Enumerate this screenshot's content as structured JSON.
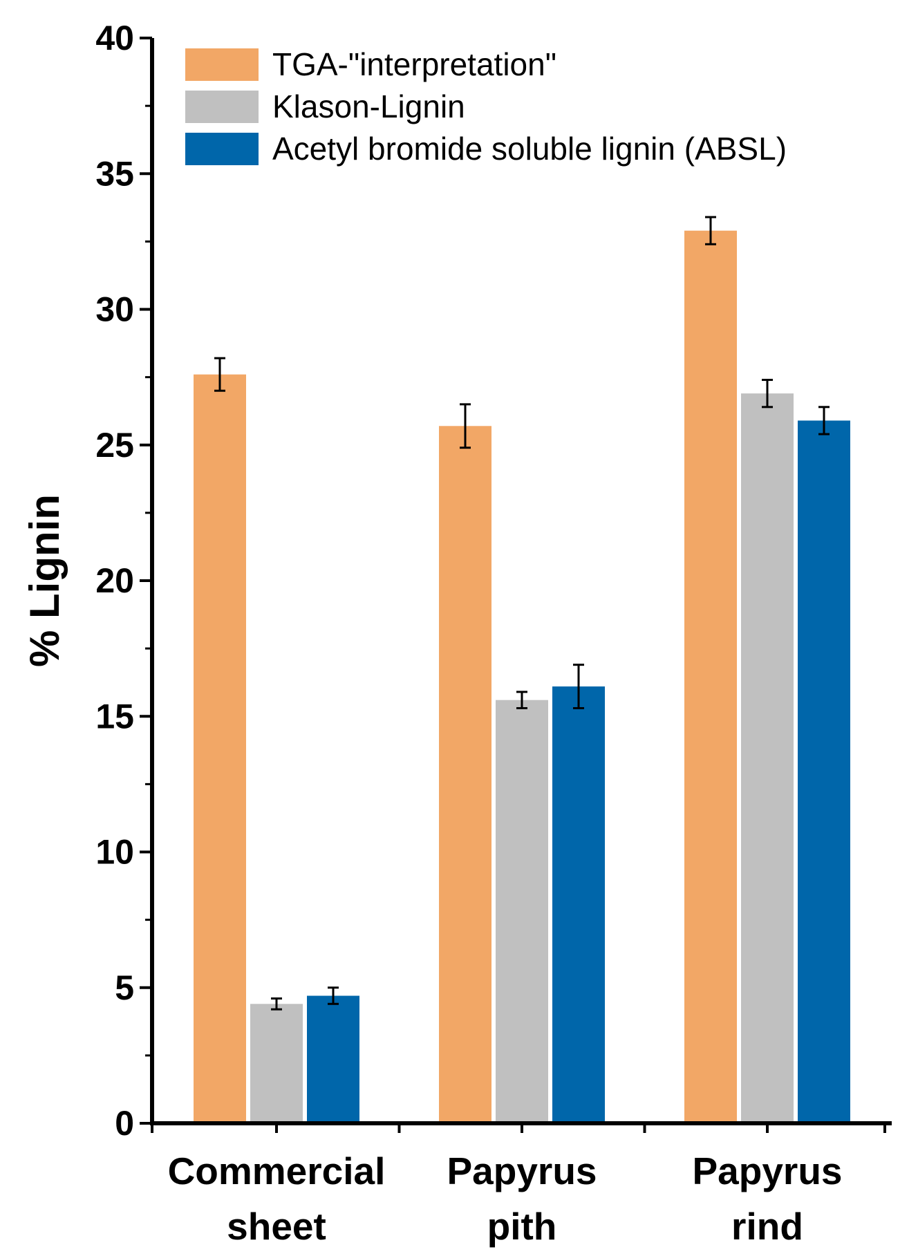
{
  "chart_data": {
    "type": "bar",
    "title": "",
    "xlabel": "",
    "ylabel": "% Lignin",
    "ylim": [
      0,
      40
    ],
    "yticks": [
      "0",
      "5",
      "10",
      "15",
      "20",
      "25",
      "30",
      "35",
      "40"
    ],
    "y_minor_step": 2.5,
    "grid": false,
    "legend_position": "top-left",
    "categories": [
      {
        "line1": "Commercial",
        "line2": "sheet"
      },
      {
        "line1": "Papyrus",
        "line2": "pith"
      },
      {
        "line1": "Papyrus",
        "line2": "rind"
      }
    ],
    "series": [
      {
        "name": "TGA-\"interpretation\"",
        "color": "#F2A766",
        "values": [
          27.6,
          25.7,
          32.9
        ],
        "errors": [
          0.6,
          0.8,
          0.5
        ]
      },
      {
        "name": "Klason-Lignin",
        "color": "#C0C0C0",
        "values": [
          4.4,
          15.6,
          26.9
        ],
        "errors": [
          0.2,
          0.3,
          0.5
        ]
      },
      {
        "name": "Acetyl bromide soluble lignin (ABSL)",
        "color": "#0066AA",
        "values": [
          4.7,
          16.1,
          25.9
        ],
        "errors": [
          0.3,
          0.8,
          0.5
        ]
      }
    ]
  }
}
